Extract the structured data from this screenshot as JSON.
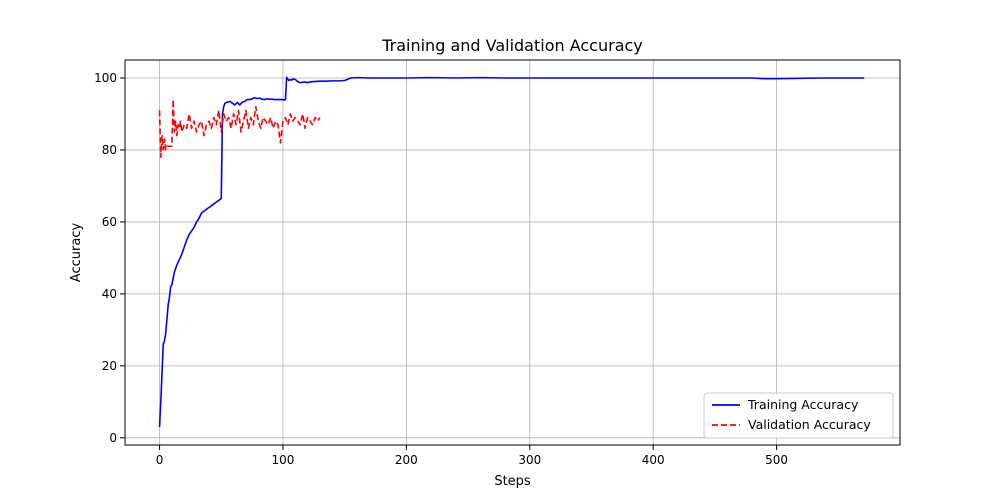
{
  "chart_data": {
    "type": "line",
    "title": "Training and Validation Accuracy",
    "xlabel": "Steps",
    "ylabel": "Accuracy",
    "xlim": [
      -28,
      600
    ],
    "ylim": [
      -2,
      105
    ],
    "xticks": [
      0,
      100,
      200,
      300,
      400,
      500
    ],
    "yticks": [
      0,
      20,
      40,
      60,
      80,
      100
    ],
    "grid": true,
    "legend_position": "bottom-right",
    "series": [
      {
        "name": "Training Accuracy",
        "color": "#0000ff",
        "linestyle": "solid",
        "x": [
          0,
          1,
          2,
          3,
          4,
          5,
          6,
          7,
          8,
          9,
          10,
          12,
          14,
          16,
          18,
          20,
          22,
          24,
          26,
          28,
          30,
          32,
          34,
          36,
          38,
          40,
          42,
          44,
          46,
          48,
          50,
          51,
          52,
          53,
          55,
          57,
          59,
          61,
          63,
          65,
          67,
          69,
          71,
          73,
          75,
          77,
          79,
          81,
          83,
          85,
          87,
          89,
          91,
          93,
          95,
          97,
          99,
          101,
          102,
          103,
          104,
          105,
          106,
          107,
          108,
          110,
          112,
          114,
          116,
          118,
          120,
          122,
          125,
          130,
          135,
          140,
          145,
          150,
          155,
          160,
          170,
          180,
          200,
          220,
          240,
          260,
          280,
          300,
          320,
          340,
          360,
          380,
          400,
          420,
          440,
          460,
          480,
          490,
          500,
          520,
          540,
          560,
          571
        ],
        "y": [
          3,
          10,
          18,
          26,
          27,
          29,
          33,
          37,
          39,
          42,
          42.5,
          46,
          48,
          49.5,
          51,
          53,
          55,
          56.5,
          57.5,
          58.5,
          60,
          61,
          62.5,
          63,
          63.5,
          64,
          64.5,
          65,
          65.5,
          66,
          66.5,
          90,
          92,
          93,
          93.3,
          93.5,
          93,
          92.5,
          93.2,
          92.5,
          93.3,
          93.5,
          94,
          94,
          94.2,
          94.5,
          94.3,
          94.4,
          94.1,
          94,
          94.2,
          94.1,
          94.1,
          94,
          94,
          94,
          94,
          93.9,
          94,
          100.2,
          99.6,
          99.3,
          99.6,
          99.4,
          99.7,
          99.6,
          99,
          98.7,
          98.8,
          98.9,
          98.7,
          98.9,
          99,
          99.1,
          99.1,
          99.2,
          99.2,
          99.3,
          100,
          100.1,
          100,
          100,
          100,
          100.1,
          100,
          100.1,
          100,
          100,
          100,
          100,
          100,
          100,
          100,
          100,
          100,
          100,
          100,
          99.8,
          99.8,
          99.9,
          100,
          100,
          100
        ]
      },
      {
        "name": "Validation Accuracy",
        "color": "#ff0000",
        "linestyle": "dashed",
        "x": [
          0,
          1,
          2,
          3,
          4,
          5,
          6,
          8,
          10,
          11,
          12,
          13,
          14,
          15,
          16,
          17,
          18,
          20,
          22,
          24,
          26,
          28,
          30,
          32,
          34,
          36,
          38,
          40,
          42,
          44,
          46,
          48,
          50,
          52,
          54,
          56,
          58,
          60,
          62,
          64,
          66,
          68,
          70,
          72,
          74,
          76,
          78,
          80,
          82,
          84,
          86,
          88,
          90,
          92,
          94,
          96,
          98,
          100,
          102,
          104,
          106,
          108,
          110,
          112,
          114,
          116,
          118,
          120,
          122,
          124,
          126,
          128,
          130
        ],
        "y": [
          91,
          78,
          84,
          80,
          83,
          80,
          81,
          81,
          81,
          94,
          85,
          88,
          84,
          87,
          86,
          88,
          85,
          87,
          86,
          90,
          86,
          88,
          85,
          87,
          88,
          84,
          87,
          88,
          86,
          89,
          87,
          91,
          85,
          90,
          88,
          89,
          86,
          90,
          87,
          91,
          85,
          88,
          91,
          86,
          89,
          87,
          92,
          88,
          86,
          89,
          88,
          87,
          89,
          86,
          88,
          87,
          82,
          88,
          89,
          87,
          90,
          88,
          89,
          88,
          87,
          90,
          86,
          89,
          88,
          87,
          89,
          88,
          89
        ]
      }
    ]
  }
}
